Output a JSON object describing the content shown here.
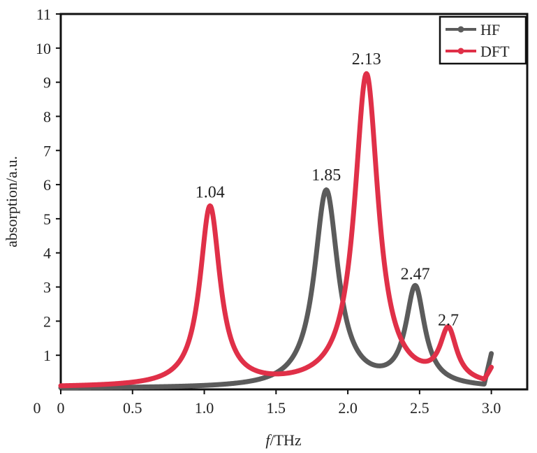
{
  "chart_data": {
    "type": "line",
    "xlabel_italic": "f",
    "xlabel_rest": "/THz",
    "ylabel": "absorption/a.u.",
    "xlim": [
      0,
      3.25
    ],
    "ylim": [
      0,
      11
    ],
    "x_ticks": [
      "0",
      "0.5",
      "1.0",
      "1.5",
      "2.0",
      "2.5",
      "3.0"
    ],
    "x_tick_values": [
      0,
      0.5,
      1.0,
      1.5,
      2.0,
      2.5,
      3.0
    ],
    "y_ticks": [
      "1",
      "2",
      "3",
      "4",
      "5",
      "6",
      "7",
      "8",
      "9",
      "10",
      "11"
    ],
    "y_tick_values": [
      1,
      2,
      3,
      4,
      5,
      6,
      7,
      8,
      9,
      10,
      11
    ],
    "legend": {
      "position": "top-right"
    },
    "series": [
      {
        "name": "HF",
        "color": "#5b5b5b",
        "x_range": [
          0,
          3.0
        ],
        "baseline": 0.03,
        "peaks": [
          {
            "x": 1.85,
            "y": 5.8,
            "width": 0.1
          },
          {
            "x": 2.47,
            "y": 2.9,
            "width": 0.08
          }
        ],
        "tail": {
          "x": 3.0,
          "y": 1.05
        }
      },
      {
        "name": "DFT",
        "color": "#e03048",
        "x_range": [
          0,
          3.0
        ],
        "baseline": 0.05,
        "peaks": [
          {
            "x": 1.04,
            "y": 5.3,
            "width": 0.085
          },
          {
            "x": 2.13,
            "y": 9.2,
            "width": 0.1
          },
          {
            "x": 2.7,
            "y": 1.55,
            "width": 0.07
          }
        ],
        "tail": {
          "x": 3.0,
          "y": 0.65
        }
      }
    ],
    "annotations": [
      {
        "text": "1.04",
        "x": 1.04,
        "y": 5.3
      },
      {
        "text": "1.85",
        "x": 1.85,
        "y": 5.8
      },
      {
        "text": "2.13",
        "x": 2.13,
        "y": 9.2
      },
      {
        "text": "2.47",
        "x": 2.47,
        "y": 2.9
      },
      {
        "text": "2.7",
        "x": 2.7,
        "y": 1.55
      }
    ],
    "origin_label": "0"
  }
}
